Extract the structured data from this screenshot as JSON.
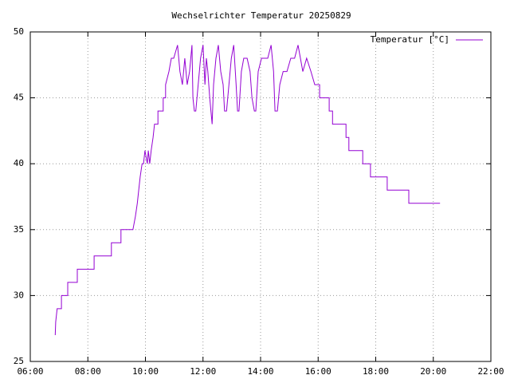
{
  "chart_data": {
    "type": "line",
    "title": "Wechselrichter Temperatur 20250829",
    "xlim": [
      "06:00",
      "22:00"
    ],
    "xticks": [
      "06:00",
      "08:00",
      "10:00",
      "12:00",
      "14:00",
      "16:00",
      "18:00",
      "20:00",
      "22:00"
    ],
    "ylim": [
      25,
      50
    ],
    "yticks": [
      25,
      30,
      35,
      40,
      45,
      50
    ],
    "grid": true,
    "legend": "top right",
    "x": [
      "06:52",
      "06:53",
      "06:56",
      "07:05",
      "07:05",
      "07:18",
      "07:18",
      "07:38",
      "07:38",
      "08:13",
      "08:13",
      "08:49",
      "08:49",
      "09:09",
      "09:09",
      "09:34",
      "09:39",
      "09:43",
      "09:46",
      "09:49",
      "09:53",
      "09:56",
      "09:59",
      "10:04",
      "10:06",
      "10:09",
      "10:12",
      "10:16",
      "10:19",
      "10:26",
      "10:26",
      "10:37",
      "10:37",
      "10:42",
      "10:42",
      "10:49",
      "10:54",
      "10:59",
      "11:07",
      "11:12",
      "11:17",
      "11:22",
      "11:27",
      "11:32",
      "11:37",
      "11:39",
      "11:42",
      "11:45",
      "11:50",
      "11:55",
      "12:00",
      "12:04",
      "12:07",
      "12:10",
      "12:14",
      "12:19",
      "12:22",
      "12:27",
      "12:32",
      "12:37",
      "12:42",
      "12:45",
      "12:49",
      "12:54",
      "12:59",
      "13:04",
      "13:09",
      "13:12",
      "13:15",
      "13:20",
      "13:25",
      "13:32",
      "13:38",
      "13:42",
      "13:47",
      "13:50",
      "13:55",
      "14:02",
      "14:15",
      "14:22",
      "14:27",
      "14:30",
      "14:35",
      "14:40",
      "14:47",
      "14:55",
      "15:03",
      "15:11",
      "15:18",
      "15:23",
      "15:28",
      "15:36",
      "15:45",
      "15:53",
      "16:03",
      "16:03",
      "16:23",
      "16:23",
      "16:30",
      "16:30",
      "16:58",
      "16:58",
      "17:04",
      "17:04",
      "17:33",
      "17:33",
      "17:49",
      "17:49",
      "18:24",
      "18:24",
      "19:09",
      "19:09",
      "20:14"
    ],
    "series": [
      {
        "name": "Temperatur [°C]",
        "color": "#9400d3",
        "values": [
          27,
          28,
          29,
          29,
          30,
          30,
          31,
          31,
          32,
          32,
          33,
          33,
          34,
          34,
          35,
          35,
          36,
          37,
          38,
          39,
          40,
          40,
          41,
          40,
          41,
          40,
          41,
          42,
          43,
          43,
          44,
          44,
          45,
          45,
          46,
          47,
          48,
          48,
          49,
          47,
          46,
          48,
          46,
          47,
          49,
          45,
          44,
          44,
          46,
          48,
          49,
          46,
          48,
          47,
          45,
          43,
          46,
          48,
          49,
          47,
          46,
          44,
          44,
          46,
          48,
          49,
          46,
          44,
          44,
          47,
          48,
          48,
          47,
          45,
          44,
          44,
          47,
          48,
          48,
          49,
          47,
          44,
          44,
          46,
          47,
          47,
          48,
          48,
          49,
          48,
          47,
          48,
          47,
          46,
          46,
          45,
          45,
          44,
          44,
          43,
          43,
          42,
          42,
          41,
          41,
          40,
          40,
          39,
          39,
          38,
          38,
          37,
          37
        ]
      }
    ]
  }
}
